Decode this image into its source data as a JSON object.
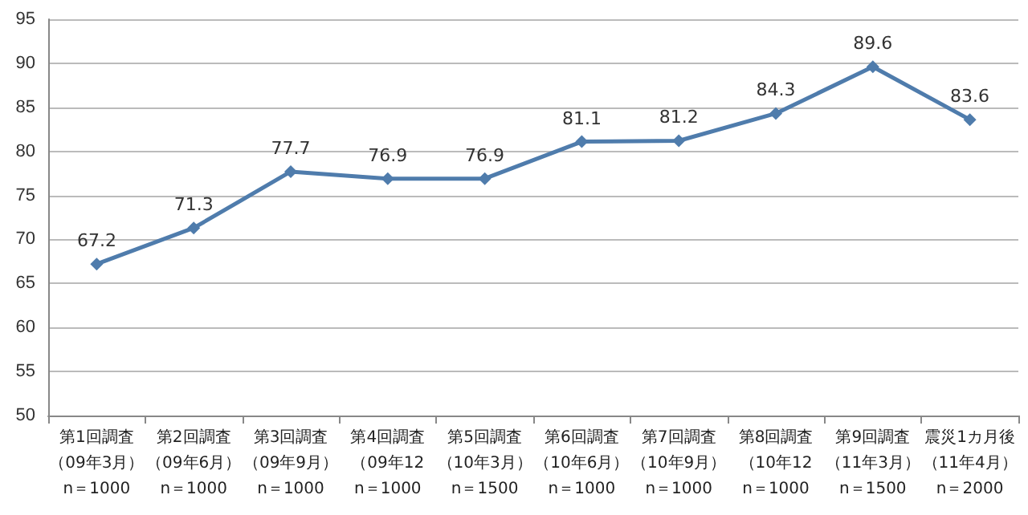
{
  "chart_data": {
    "type": "line",
    "categories": [
      "第1回調査（09年3月）\nn＝1000",
      "第2回調査（09年6月）\nn＝1000",
      "第3回調査（09年9月）\nn＝1000",
      "第4回調査（09年12\nn＝1000",
      "第5回調査（10年3月）\nn＝1500",
      "第6回調査（10年6月）\nn＝1000",
      "第7回調査（10年9月）\nn＝1000",
      "第8回調査（10年12\nn＝1000",
      "第9回調査（11年3月）\nn＝1500",
      "震災1カ月後（11年4月）\nn＝2000"
    ],
    "series": [
      {
        "color": "#4f7cac",
        "values": [
          67.2,
          71.3,
          77.7,
          76.9,
          76.9,
          81.1,
          81.2,
          84.3,
          89.6,
          83.6
        ]
      }
    ],
    "ylim": [
      50,
      95
    ],
    "yticks": [
      50,
      55,
      60,
      65,
      70,
      75,
      80,
      85,
      90,
      95
    ],
    "grid": "y",
    "marker": "diamond",
    "line_style": "solid",
    "data_labels": true
  }
}
